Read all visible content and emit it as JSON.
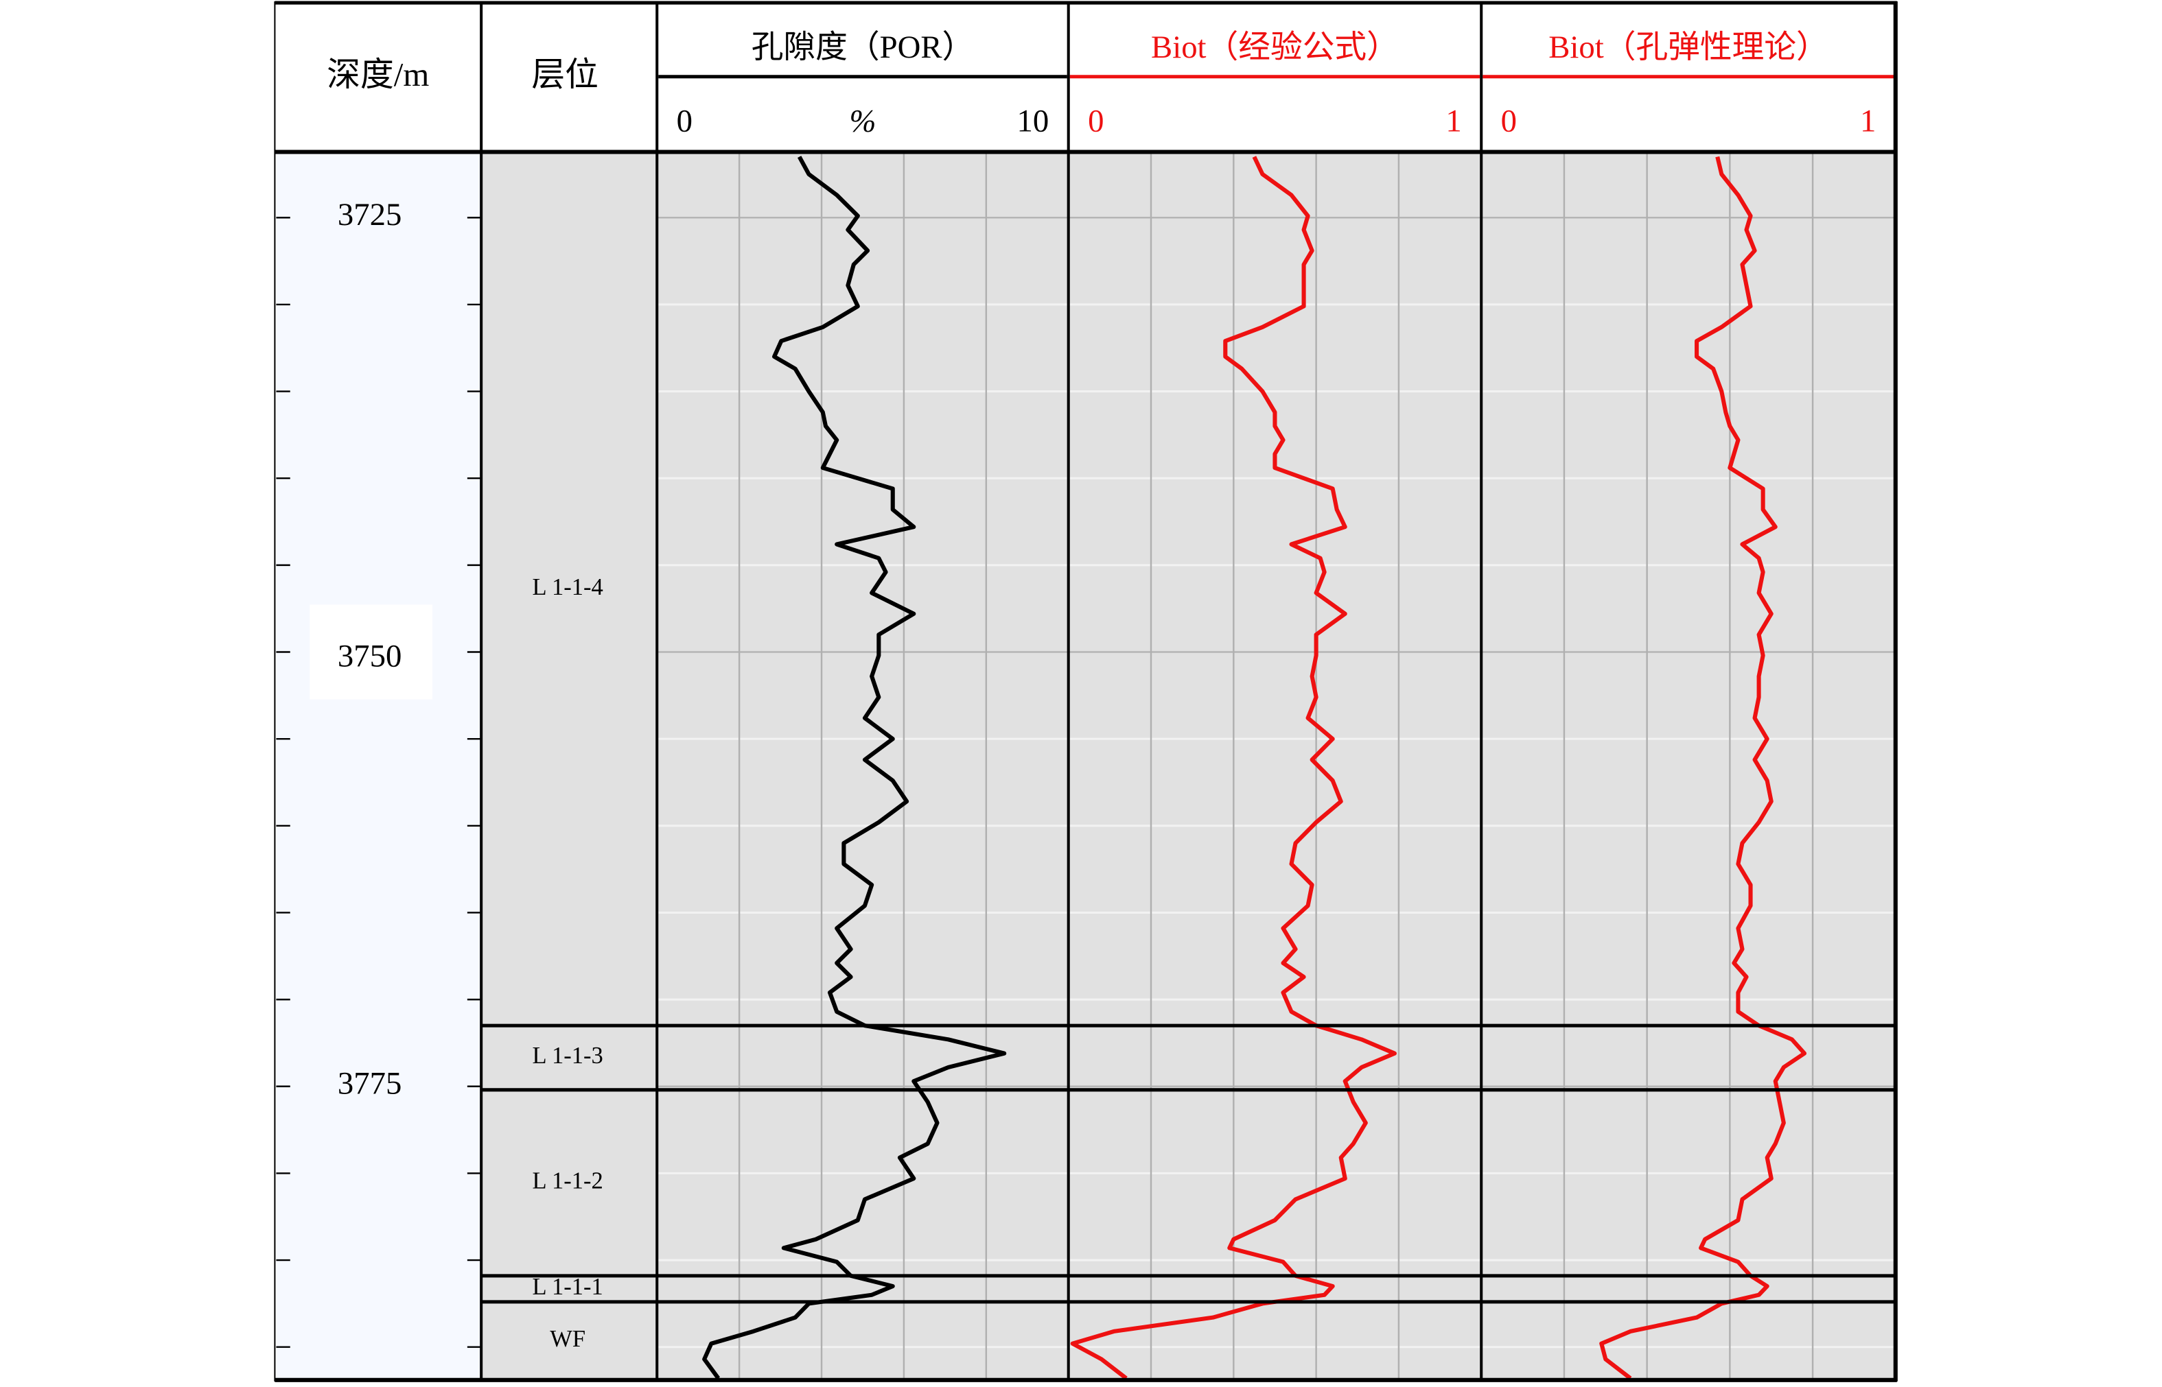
{
  "chart_data": {
    "type": "well_log",
    "depth_label": "深度/m",
    "zone_label": "层位",
    "ylim": [
      3721.3,
      3791.9
    ],
    "yticks": [
      3725,
      3750,
      3775
    ],
    "minor_yticks": [
      3730,
      3735,
      3740,
      3745,
      3755,
      3760,
      3765,
      3770,
      3780,
      3785,
      3790
    ],
    "zones": [
      "L 1-1-4",
      "L 1-1-3",
      "L 1-1-2",
      "L 1-1-1",
      "WF"
    ],
    "zone_boundaries": [
      3771.5,
      3775.2,
      3785.9,
      3787.4
    ],
    "zone_fill": "#e1e1e1",
    "depth": [
      3721.5,
      3722.5,
      3723.7,
      3724.9,
      3725.7,
      3726.9,
      3727.7,
      3728.9,
      3730.1,
      3731.3,
      3732.1,
      3733.0,
      3733.7,
      3735.0,
      3736.2,
      3737.0,
      3737.8,
      3738.6,
      3739.4,
      3740.6,
      3741.8,
      3742.8,
      3743.8,
      3744.6,
      3745.4,
      3746.6,
      3747.8,
      3749.0,
      3750.2,
      3751.4,
      3752.6,
      3753.8,
      3755.0,
      3756.2,
      3757.4,
      3758.6,
      3759.8,
      3761.0,
      3762.2,
      3763.4,
      3764.6,
      3765.9,
      3767.1,
      3767.9,
      3768.7,
      3769.6,
      3770.7,
      3771.5,
      3772.3,
      3773.1,
      3773.9,
      3774.7,
      3775.9,
      3777.1,
      3778.3,
      3779.1,
      3780.3,
      3781.5,
      3782.7,
      3783.8,
      3784.3,
      3785.1,
      3785.9,
      3786.5,
      3787.0,
      3787.5,
      3788.3,
      3789.1,
      3789.8,
      3790.7,
      3791.8
    ],
    "tracks": [
      {
        "title": "孔隙度（POR）",
        "unit": "%",
        "color": "#000000",
        "xlim": [
          0,
          10
        ],
        "xticks": [
          0,
          2,
          4,
          6,
          8,
          10
        ],
        "values": [
          3.46,
          3.69,
          4.37,
          4.88,
          4.64,
          5.12,
          4.78,
          4.64,
          4.88,
          4.03,
          3.02,
          2.85,
          3.36,
          3.69,
          4.03,
          4.1,
          4.37,
          4.2,
          4.03,
          5.73,
          5.73,
          6.24,
          4.37,
          5.39,
          5.56,
          5.22,
          6.24,
          5.39,
          5.39,
          5.22,
          5.39,
          5.05,
          5.73,
          5.05,
          5.73,
          6.07,
          5.39,
          4.54,
          4.54,
          5.22,
          5.05,
          4.37,
          4.71,
          4.37,
          4.71,
          4.2,
          4.37,
          5.05,
          7.08,
          8.44,
          7.08,
          6.24,
          6.58,
          6.81,
          6.58,
          5.9,
          6.24,
          5.05,
          4.88,
          3.86,
          3.08,
          4.37,
          4.71,
          5.73,
          5.22,
          3.69,
          3.36,
          2.34,
          1.32,
          1.15,
          1.49
        ]
      },
      {
        "title": "Biot（经验公式）",
        "color": "#ee1111",
        "xlim": [
          0,
          1
        ],
        "xticks": [
          0,
          0.2,
          0.4,
          0.6,
          0.8,
          1
        ],
        "values": [
          0.45,
          0.47,
          0.54,
          0.58,
          0.57,
          0.59,
          0.57,
          0.57,
          0.57,
          0.47,
          0.38,
          0.38,
          0.42,
          0.47,
          0.5,
          0.5,
          0.52,
          0.5,
          0.5,
          0.64,
          0.65,
          0.67,
          0.54,
          0.61,
          0.62,
          0.6,
          0.67,
          0.6,
          0.6,
          0.59,
          0.6,
          0.58,
          0.64,
          0.59,
          0.64,
          0.66,
          0.6,
          0.55,
          0.54,
          0.59,
          0.58,
          0.52,
          0.55,
          0.52,
          0.57,
          0.52,
          0.54,
          0.6,
          0.71,
          0.79,
          0.71,
          0.67,
          0.69,
          0.72,
          0.69,
          0.66,
          0.67,
          0.55,
          0.5,
          0.4,
          0.39,
          0.52,
          0.55,
          0.64,
          0.62,
          0.47,
          0.35,
          0.11,
          0.01,
          0.08,
          0.14
        ]
      },
      {
        "title": "Biot（孔弹性理论）",
        "color": "#ee1111",
        "xlim": [
          0,
          1
        ],
        "xticks": [
          0,
          0.2,
          0.4,
          0.6,
          0.8,
          1
        ],
        "values": [
          0.57,
          0.58,
          0.62,
          0.65,
          0.64,
          0.66,
          0.63,
          0.64,
          0.65,
          0.58,
          0.52,
          0.52,
          0.56,
          0.58,
          0.59,
          0.6,
          0.62,
          0.61,
          0.6,
          0.68,
          0.68,
          0.71,
          0.63,
          0.67,
          0.68,
          0.67,
          0.7,
          0.67,
          0.68,
          0.67,
          0.67,
          0.66,
          0.69,
          0.66,
          0.69,
          0.7,
          0.67,
          0.63,
          0.62,
          0.65,
          0.65,
          0.62,
          0.63,
          0.61,
          0.64,
          0.62,
          0.62,
          0.67,
          0.75,
          0.78,
          0.73,
          0.71,
          0.72,
          0.73,
          0.71,
          0.69,
          0.7,
          0.63,
          0.62,
          0.54,
          0.53,
          0.62,
          0.65,
          0.69,
          0.67,
          0.58,
          0.52,
          0.36,
          0.29,
          0.3,
          0.36
        ]
      }
    ]
  }
}
